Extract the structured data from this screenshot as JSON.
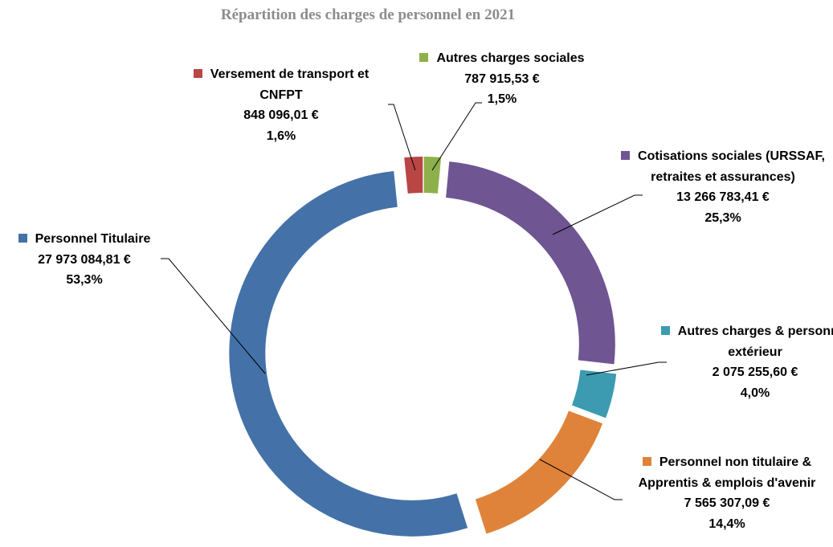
{
  "chart_data": {
    "type": "donut",
    "title": "Répartition des charges de personnel en 2021",
    "categories": [
      "Autres charges sociales",
      "Cotisations sociales (URSSAF, retraites et assurances)",
      "Autres charges & personnel extérieur",
      "Personnel non titulaire & Apprentis & emplois d'avenir",
      "Personnel Titulaire",
      "Versement de transport et CNFPT"
    ],
    "values": [
      787915.53,
      13266783.41,
      2075255.6,
      7565307.09,
      27973084.81,
      848096.01
    ],
    "value_labels": [
      "787 915,53 €",
      "13 266 783,41 €",
      "2 075 255,60 €",
      "7 565 307,09 €",
      "27 973 084,81 €",
      "848 096,01 €"
    ],
    "percentages": [
      1.5,
      25.3,
      4.0,
      14.4,
      53.3,
      1.6
    ],
    "percentage_labels": [
      "1,5%",
      "25,3%",
      "4,0%",
      "14,4%",
      "53,3%",
      "1,6%"
    ],
    "colors": [
      "#8eb04a",
      "#6f5592",
      "#3c9bb0",
      "#e0833a",
      "#4472a8",
      "#b94545"
    ]
  }
}
